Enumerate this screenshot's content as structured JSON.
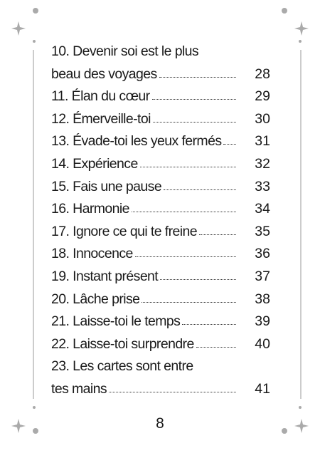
{
  "entries": [
    {
      "lines": [
        "10. Devenir soi est le plus",
        "beau des voyages"
      ],
      "page": "28"
    },
    {
      "lines": [
        "11. Élan du cœur"
      ],
      "page": "29"
    },
    {
      "lines": [
        "12. Émerveille-toi"
      ],
      "page": "30"
    },
    {
      "lines": [
        "13. Évade-toi les yeux fermés"
      ],
      "page": "31"
    },
    {
      "lines": [
        "14. Expérience"
      ],
      "page": "32"
    },
    {
      "lines": [
        "15. Fais une pause"
      ],
      "page": "33"
    },
    {
      "lines": [
        "16. Harmonie"
      ],
      "page": "34"
    },
    {
      "lines": [
        "17. Ignore ce qui te freine"
      ],
      "page": "35"
    },
    {
      "lines": [
        "18. Innocence"
      ],
      "page": "36"
    },
    {
      "lines": [
        "19. Instant présent"
      ],
      "page": "37"
    },
    {
      "lines": [
        "20. Lâche prise"
      ],
      "page": "38"
    },
    {
      "lines": [
        "21. Laisse-toi le temps"
      ],
      "page": "39"
    },
    {
      "lines": [
        "22. Laisse-toi surprendre"
      ],
      "page": "40"
    },
    {
      "lines": [
        "23. Les cartes sont entre",
        "tes mains"
      ],
      "page": "41"
    }
  ],
  "footer": {
    "page_number": "8"
  }
}
